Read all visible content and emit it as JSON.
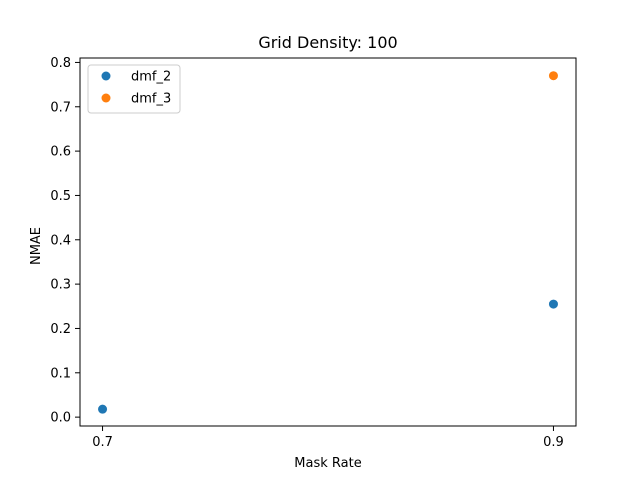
{
  "chart_data": {
    "type": "scatter",
    "title": "Grid Density: 100",
    "xlabel": "Mask Rate",
    "ylabel": "NMAE",
    "x_ticks": [
      0.7,
      0.9
    ],
    "x_tick_labels": [
      "0.7",
      "0.9"
    ],
    "y_ticks": [
      0.0,
      0.1,
      0.2,
      0.3,
      0.4,
      0.5,
      0.6,
      0.7,
      0.8
    ],
    "y_tick_labels": [
      "0.0",
      "0.1",
      "0.2",
      "0.3",
      "0.4",
      "0.5",
      "0.6",
      "0.7",
      "0.8"
    ],
    "xlim": [
      0.69,
      0.91
    ],
    "ylim": [
      -0.02,
      0.81
    ],
    "grid": false,
    "legend_position": "upper-left",
    "series": [
      {
        "name": "dmf_2",
        "color": "#1f77b4",
        "points": [
          {
            "x": 0.7,
            "y": 0.018
          },
          {
            "x": 0.9,
            "y": 0.255
          }
        ]
      },
      {
        "name": "dmf_3",
        "color": "#ff7f0e",
        "points": [
          {
            "x": 0.9,
            "y": 0.77
          }
        ]
      }
    ]
  }
}
